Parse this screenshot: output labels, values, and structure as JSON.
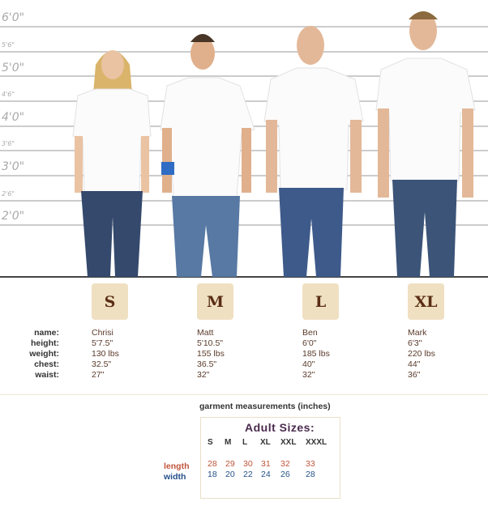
{
  "height_marks": [
    "6'0\"",
    "5'6\"",
    "5'0\"",
    "4'6\"",
    "4'0\"",
    "3'6\"",
    "3'0\"",
    "2'6\"",
    "2'0\""
  ],
  "sizes": [
    "S",
    "M",
    "L",
    "XL"
  ],
  "stat_labels": {
    "name": "name:",
    "height": "height:",
    "weight": "weight:",
    "chest": "chest:",
    "waist": "waist:"
  },
  "models": [
    {
      "size": "S",
      "name": "Chrisi",
      "height": "5'7.5\"",
      "weight": "130 lbs",
      "chest": "32.5\"",
      "waist": "27\""
    },
    {
      "size": "M",
      "name": "Matt",
      "height": "5'10.5\"",
      "weight": "155 lbs",
      "chest": "36.5\"",
      "waist": "32\""
    },
    {
      "size": "L",
      "name": "Ben",
      "height": "6'0\"",
      "weight": "185 lbs",
      "chest": "40\"",
      "waist": "32\""
    },
    {
      "size": "XL",
      "name": "Mark",
      "height": "6'3\"",
      "weight": "220 lbs",
      "chest": "44\"",
      "waist": "36\""
    }
  ],
  "garment": {
    "title": "garment measurements (inches)",
    "heading": "Adult Sizes:",
    "sizes": [
      "S",
      "M",
      "L",
      "XL",
      "XXL",
      "XXXL"
    ],
    "length_label": "length",
    "width_label": "width",
    "length": [
      "28",
      "29",
      "30",
      "31",
      "32",
      "33"
    ],
    "width": [
      "18",
      "20",
      "22",
      "24",
      "26",
      "28"
    ]
  },
  "colors": {
    "badge_bg": "#f0e0c2",
    "badge_text": "#5a2e14",
    "length": "#c0553b",
    "width": "#26508a",
    "jeans": "#3b5478",
    "shirt": "#ffffff"
  }
}
